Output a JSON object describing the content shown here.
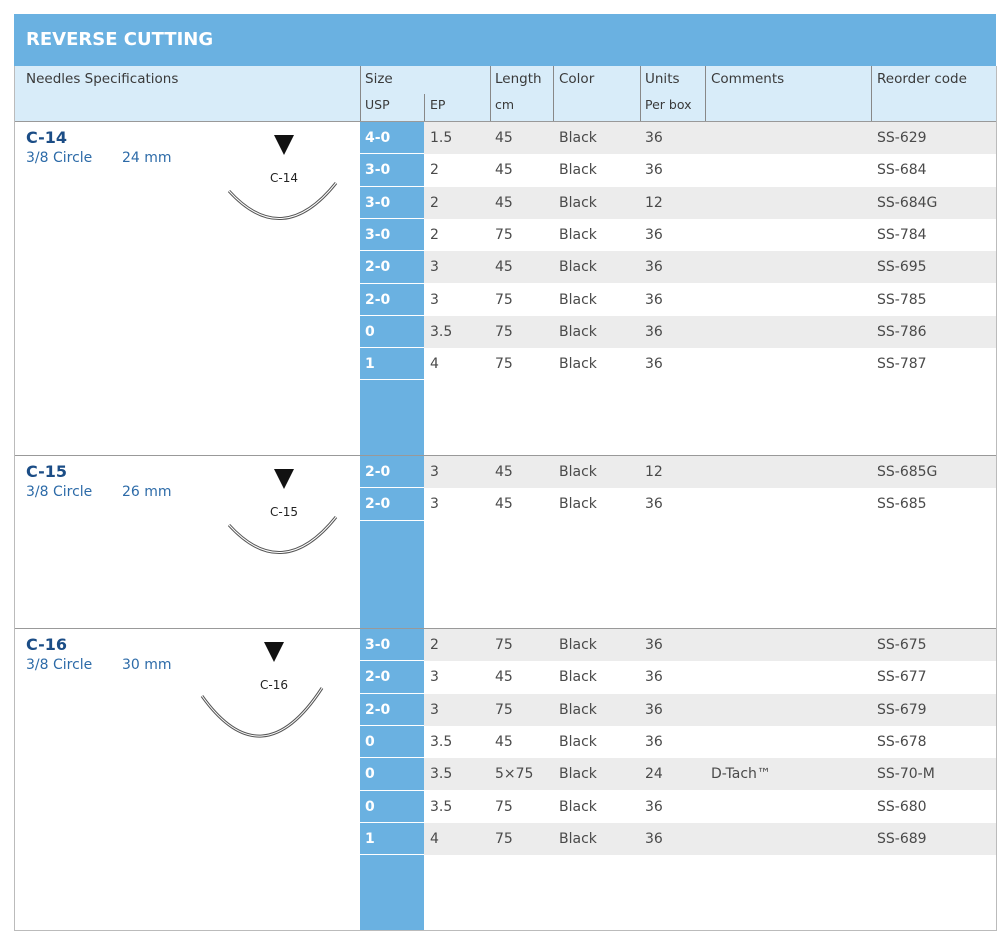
{
  "header": {
    "title": "REVERSE CUTTING"
  },
  "table": {
    "header_row1": [
      "Needles Specifications",
      "Size",
      "Length",
      "Color",
      "Units",
      "Comments",
      "Reorder code"
    ],
    "header_row2": [
      "USP",
      "EP",
      "cm",
      "Per box"
    ],
    "groups": [
      {
        "name": "C-14",
        "shape": "3/8 Circle",
        "size": "24 mm",
        "diagram_label": "C-14",
        "rows": [
          {
            "usp": "4-0",
            "ep": "1.5",
            "length": "45",
            "color": "Black",
            "units": "36",
            "code": "SS-629"
          },
          {
            "usp": "3-0",
            "ep": "2",
            "length": "45",
            "color": "Black",
            "units": "36",
            "code": "SS-684"
          },
          {
            "usp": "3-0",
            "ep": "2",
            "length": "45",
            "color": "Black",
            "units": "12",
            "code": "SS-684G"
          },
          {
            "usp": "3-0",
            "ep": "2",
            "length": "75",
            "color": "Black",
            "units": "36",
            "code": "SS-784"
          },
          {
            "usp": "2-0",
            "ep": "3",
            "length": "45",
            "color": "Black",
            "units": "36",
            "code": "SS-695"
          },
          {
            "usp": "2-0",
            "ep": "3",
            "length": "75",
            "color": "Black",
            "units": "36",
            "code": "SS-785"
          },
          {
            "usp": "0",
            "ep": "3.5",
            "length": "75",
            "color": "Black",
            "units": "36",
            "code": "SS-786"
          },
          {
            "usp": "1",
            "ep": "4",
            "length": "75",
            "color": "Black",
            "units": "36",
            "code": "SS-787"
          }
        ]
      },
      {
        "name": "C-15",
        "shape": "3/8 Circle",
        "size": "26 mm",
        "diagram_label": "C-15",
        "rows": [
          {
            "usp": "2-0",
            "ep": "3",
            "length": "45",
            "color": "Black",
            "units": "12",
            "code": "SS-685G"
          },
          {
            "usp": "2-0",
            "ep": "3",
            "length": "45",
            "color": "Black",
            "units": "36",
            "code": "SS-685"
          }
        ]
      },
      {
        "name": "C-16",
        "shape": "3/8 Circle",
        "size": "30 mm",
        "diagram_label": "C-16",
        "rows": [
          {
            "usp": "3-0",
            "ep": "2",
            "length": "75",
            "color": "Black",
            "units": "36",
            "code": "SS-675"
          },
          {
            "usp": "2-0",
            "ep": "3",
            "length": "45",
            "color": "Black",
            "units": "36",
            "code": "SS-677"
          },
          {
            "usp": "2-0",
            "ep": "3",
            "length": "75",
            "color": "Black",
            "units": "36",
            "code": "SS-679"
          },
          {
            "usp": "0",
            "ep": "3.5",
            "length": "45",
            "color": "Black",
            "units": "36",
            "code": "SS-678"
          },
          {
            "usp": "0",
            "ep": "3.5",
            "length": "5×75",
            "color": "Black",
            "units": "24",
            "comment": "D-Tach™",
            "code": "SS-70-M"
          },
          {
            "usp": "0",
            "ep": "3.5",
            "length": "75",
            "color": "Black",
            "units": "36",
            "code": "SS-680"
          },
          {
            "usp": "1",
            "ep": "4",
            "length": "75",
            "color": "Black",
            "units": "36",
            "code": "SS-689"
          }
        ]
      }
    ]
  }
}
